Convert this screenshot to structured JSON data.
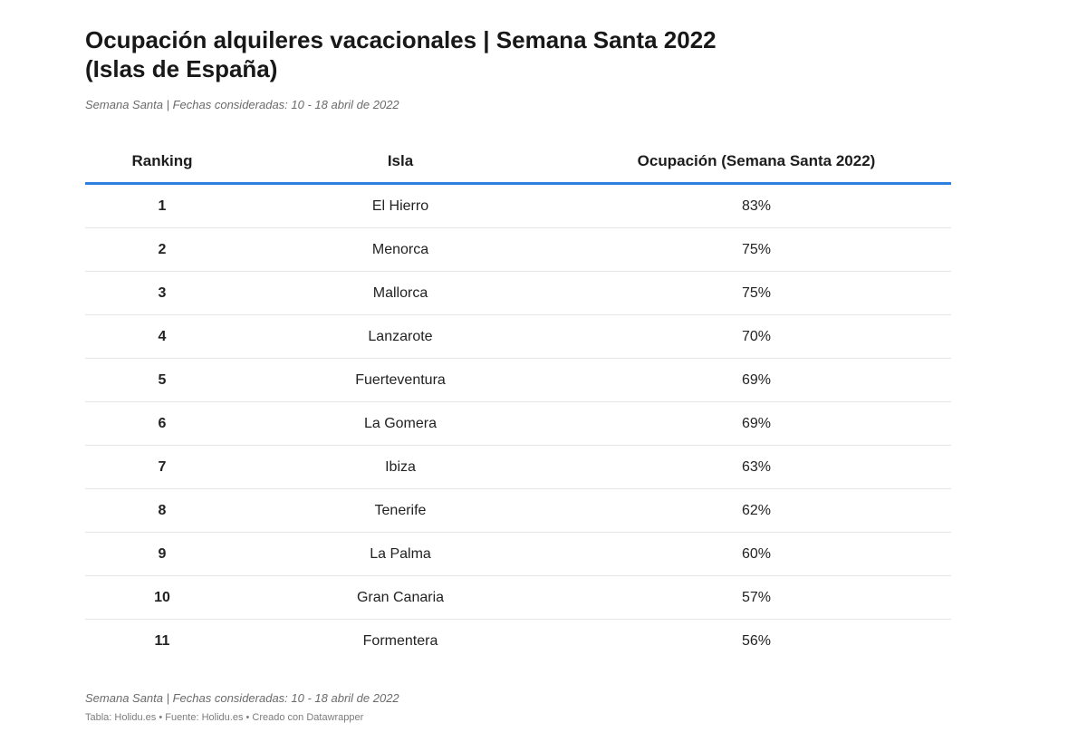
{
  "header": {
    "title_line1": "Ocupación alquileres vacacionales | Semana Santa 2022",
    "title_line2": "(Islas de España)",
    "subtitle": "Semana Santa |  Fechas consideradas: 10 - 18 abril de 2022"
  },
  "chart_data": {
    "type": "table",
    "title": "Ocupación alquileres vacacionales | Semana Santa 2022 (Islas de España)",
    "columns": [
      "Ranking",
      "Isla",
      "Ocupación (Semana Santa 2022)"
    ],
    "rows": [
      {
        "rank": "1",
        "island": "El Hierro",
        "occupancy": "83%"
      },
      {
        "rank": "2",
        "island": "Menorca",
        "occupancy": "75%"
      },
      {
        "rank": "3",
        "island": "Mallorca",
        "occupancy": "75%"
      },
      {
        "rank": "4",
        "island": "Lanzarote",
        "occupancy": "70%"
      },
      {
        "rank": "5",
        "island": "Fuerteventura",
        "occupancy": "69%"
      },
      {
        "rank": "6",
        "island": "La Gomera",
        "occupancy": "69%"
      },
      {
        "rank": "7",
        "island": "Ibiza",
        "occupancy": "63%"
      },
      {
        "rank": "8",
        "island": "Tenerife",
        "occupancy": "62%"
      },
      {
        "rank": "9",
        "island": "La Palma",
        "occupancy": "60%"
      },
      {
        "rank": "10",
        "island": "Gran Canaria",
        "occupancy": "57%"
      },
      {
        "rank": "11",
        "island": "Formentera",
        "occupancy": "56%"
      }
    ],
    "header_rule_color": "#2d7fe0"
  },
  "footer": {
    "notes": "Semana Santa |  Fechas consideradas: 10 - 18 abril de 2022",
    "source": "Tabla: Holidu.es • Fuente: Holidu.es • Creado con Datawrapper"
  }
}
